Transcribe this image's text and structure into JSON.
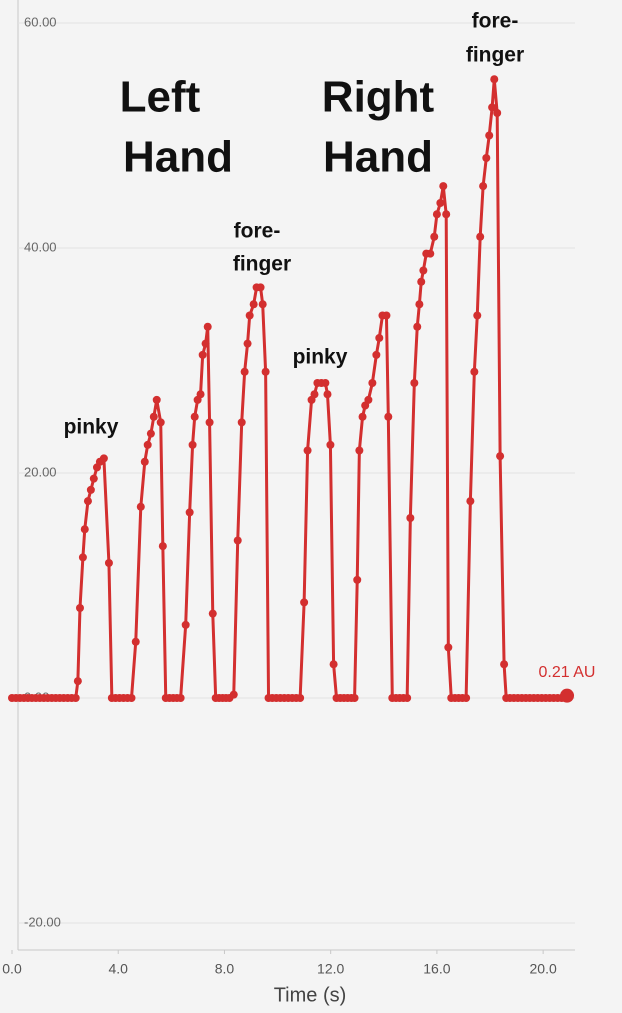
{
  "chart_data": {
    "type": "line",
    "x_label": "Time (s)",
    "color": "#d32f2f",
    "grid": true,
    "end_label": "0.21 AU",
    "annotations": [
      "Left",
      "Hand",
      "Right",
      "Hand",
      "pinky",
      "fore-",
      "finger",
      "pinky",
      "fore-",
      "finger"
    ],
    "xlim": [
      0,
      21.2
    ],
    "ylim": [
      -22.4,
      62
    ],
    "xticks": [
      {
        "value": 0,
        "label": "0.0"
      },
      {
        "value": 4,
        "label": "4.0"
      },
      {
        "value": 8,
        "label": "8.0"
      },
      {
        "value": 12,
        "label": "12.0"
      },
      {
        "value": 16,
        "label": "16.0"
      },
      {
        "value": 20,
        "label": "20.0"
      }
    ],
    "yticks": [
      {
        "value": -20,
        "label": "-20.00"
      },
      {
        "value": 0,
        "label": "0.00"
      },
      {
        "value": 20,
        "label": "20.00"
      },
      {
        "value": 40,
        "label": "40.00"
      },
      {
        "value": 60,
        "label": "60.00"
      }
    ],
    "x": [
      0,
      0.15,
      0.3,
      0.45,
      0.6,
      0.75,
      0.9,
      1.05,
      1.2,
      1.35,
      1.5,
      1.65,
      1.8,
      1.95,
      2.1,
      2.25,
      2.4,
      2.48,
      2.56,
      2.67,
      2.74,
      2.86,
      2.97,
      3.08,
      3.2,
      3.31,
      3.46,
      3.65,
      3.76,
      3.9,
      4.05,
      4.2,
      4.35,
      4.5,
      4.66,
      4.85,
      5.0,
      5.11,
      5.23,
      5.34,
      5.45,
      5.6,
      5.68,
      5.79,
      5.93,
      6.07,
      6.21,
      6.35,
      6.54,
      6.69,
      6.8,
      6.88,
      6.99,
      7.1,
      7.18,
      7.29,
      7.37,
      7.44,
      7.56,
      7.67,
      7.8,
      7.93,
      8.06,
      8.19,
      8.35,
      8.5,
      8.65,
      8.76,
      8.87,
      8.95,
      9.1,
      9.21,
      9.36,
      9.44,
      9.55,
      9.66,
      9.8,
      9.95,
      10.1,
      10.25,
      10.4,
      10.55,
      10.7,
      10.85,
      11.0,
      11.13,
      11.28,
      11.39,
      11.5,
      11.65,
      11.8,
      11.88,
      11.99,
      12.11,
      12.22,
      12.36,
      12.5,
      12.64,
      12.78,
      12.9,
      13.0,
      13.08,
      13.2,
      13.3,
      13.42,
      13.57,
      13.72,
      13.83,
      13.95,
      14.1,
      14.17,
      14.32,
      14.46,
      14.6,
      14.74,
      14.88,
      15.0,
      15.15,
      15.26,
      15.34,
      15.41,
      15.49,
      15.6,
      15.75,
      15.9,
      16.0,
      16.13,
      16.24,
      16.35,
      16.43,
      16.54,
      16.68,
      16.82,
      16.96,
      17.1,
      17.26,
      17.41,
      17.52,
      17.63,
      17.74,
      17.86,
      17.97,
      18.08,
      18.16,
      18.27,
      18.38,
      18.53,
      18.61,
      18.75,
      18.9,
      19.05,
      19.2,
      19.35,
      19.5,
      19.65,
      19.8,
      19.95,
      20.1,
      20.25,
      20.4,
      20.55,
      20.7,
      20.9
    ],
    "values": [
      0,
      0,
      0,
      0,
      0,
      0,
      0,
      0,
      0,
      0,
      0,
      0,
      0,
      0,
      0,
      0,
      0,
      1.5,
      8,
      12.5,
      15,
      17.5,
      18.5,
      19.5,
      20.5,
      21,
      21.3,
      12,
      0,
      0,
      0,
      0,
      0,
      0,
      5,
      17,
      21,
      22.5,
      23.5,
      25,
      26.5,
      24.5,
      13.5,
      0,
      0,
      0,
      0,
      0,
      6.5,
      16.5,
      22.5,
      25,
      26.5,
      27,
      30.5,
      31.5,
      33,
      24.5,
      7.5,
      0,
      0,
      0,
      0,
      0,
      0.3,
      14,
      24.5,
      29,
      31.5,
      34,
      35,
      36.5,
      36.5,
      35,
      29,
      0,
      0,
      0,
      0,
      0,
      0,
      0,
      0,
      0,
      8.5,
      22,
      26.5,
      27,
      28,
      28,
      28,
      27,
      22.5,
      3,
      0,
      0,
      0,
      0,
      0,
      0,
      10.5,
      22,
      25,
      26,
      26.5,
      28,
      30.5,
      32,
      34,
      34,
      25,
      0,
      0,
      0,
      0,
      0,
      16,
      28,
      33,
      35,
      37,
      38,
      39.5,
      39.5,
      41,
      43,
      44,
      45.5,
      43,
      4.5,
      0,
      0,
      0,
      0,
      0,
      17.5,
      29,
      34,
      41,
      45.5,
      48,
      50,
      52.5,
      55,
      52,
      21.5,
      3,
      0,
      0,
      0,
      0,
      0,
      0,
      0,
      0,
      0,
      0,
      0,
      0,
      0,
      0,
      0,
      0.21
    ]
  }
}
